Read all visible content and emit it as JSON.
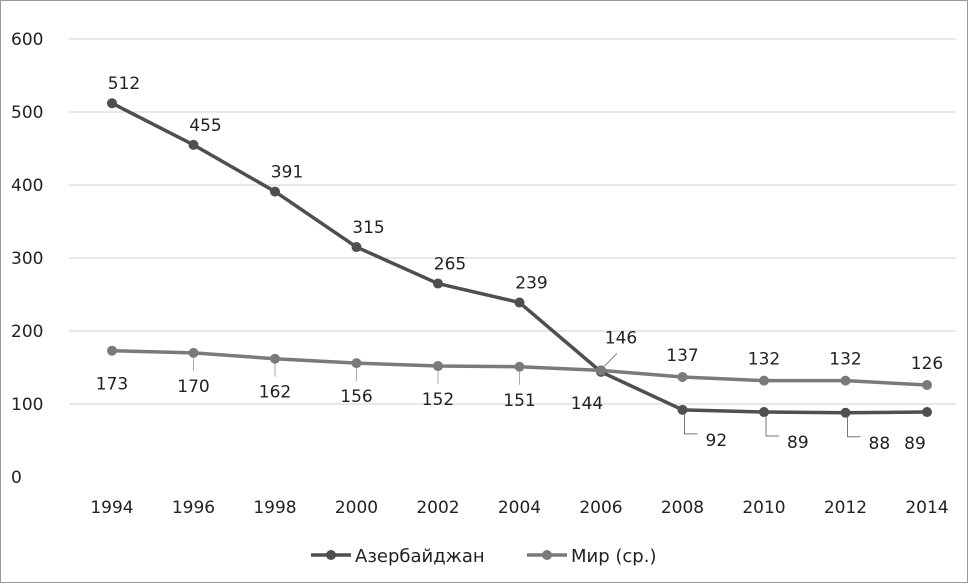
{
  "chart_data": {
    "type": "line",
    "x": [
      1994,
      1996,
      1998,
      2000,
      2002,
      2004,
      2006,
      2008,
      2010,
      2012,
      2014
    ],
    "categories": [
      "1994",
      "1996",
      "1998",
      "2000",
      "2002",
      "2004",
      "2006",
      "2008",
      "2010",
      "2012",
      "2014"
    ],
    "ylim": [
      0,
      600
    ],
    "yticks": [
      "0",
      "100",
      "200",
      "300",
      "400",
      "500",
      "600"
    ],
    "grid": true,
    "legend_position": "bottom",
    "series": [
      {
        "name": "Азербайджан",
        "values": [
          512,
          455,
          391,
          315,
          265,
          239,
          144,
          92,
          89,
          88,
          89
        ],
        "color": "#4f4f4f"
      },
      {
        "name": "Мир (ср.)",
        "values": [
          173,
          170,
          162,
          156,
          152,
          151,
          146,
          137,
          132,
          132,
          126
        ],
        "color": "#7a7a7a"
      }
    ]
  }
}
